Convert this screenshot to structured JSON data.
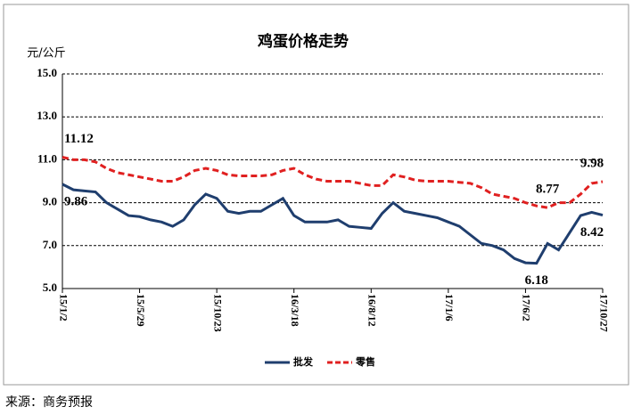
{
  "chart_data": {
    "type": "line",
    "title": "鸡蛋价格走势",
    "y_label": "元/公斤",
    "source": "来源：商务预报",
    "categories": [
      "15/1/2",
      null,
      null,
      null,
      null,
      null,
      null,
      "15/5/29",
      null,
      null,
      null,
      null,
      null,
      null,
      "15/10/23",
      null,
      null,
      null,
      null,
      null,
      null,
      "16/3/18",
      null,
      null,
      null,
      null,
      null,
      null,
      "16/8/12",
      null,
      null,
      null,
      null,
      null,
      null,
      "17/1/6",
      null,
      null,
      null,
      null,
      null,
      null,
      "17/6/2",
      null,
      null,
      null,
      null,
      null,
      null,
      "17/10/27"
    ],
    "series": [
      {
        "name": "批发",
        "color": "#1f3e6e",
        "dash": false,
        "values": [
          9.86,
          9.6,
          9.55,
          9.5,
          9.0,
          8.7,
          8.4,
          8.35,
          8.2,
          8.1,
          7.9,
          8.2,
          8.9,
          9.4,
          9.2,
          8.6,
          8.5,
          8.6,
          8.6,
          8.9,
          9.2,
          8.4,
          8.1,
          8.1,
          8.1,
          8.2,
          7.9,
          7.85,
          7.8,
          8.5,
          9.0,
          8.6,
          8.5,
          8.4,
          8.3,
          8.1,
          7.9,
          7.5,
          7.1,
          7.0,
          6.8,
          6.4,
          6.2,
          6.18,
          7.1,
          6.8,
          7.6,
          8.4,
          8.55,
          8.42
        ],
        "value_labels": [
          "9.86",
          null,
          null,
          null,
          null,
          null,
          null,
          null,
          null,
          null,
          null,
          null,
          null,
          null,
          null,
          null,
          null,
          null,
          null,
          null,
          null,
          null,
          null,
          null,
          null,
          null,
          null,
          null,
          null,
          null,
          null,
          null,
          null,
          null,
          null,
          null,
          null,
          null,
          null,
          null,
          null,
          null,
          null,
          "6.18",
          null,
          null,
          null,
          null,
          null,
          "8.42"
        ]
      },
      {
        "name": "零售",
        "color": "#e02020",
        "dash": true,
        "values": [
          11.12,
          11.0,
          11.0,
          10.9,
          10.6,
          10.4,
          10.3,
          10.2,
          10.1,
          10.0,
          10.0,
          10.2,
          10.5,
          10.6,
          10.5,
          10.3,
          10.25,
          10.25,
          10.25,
          10.3,
          10.5,
          10.6,
          10.3,
          10.1,
          10.0,
          10.0,
          10.0,
          9.9,
          9.8,
          9.8,
          10.3,
          10.2,
          10.05,
          10.0,
          10.0,
          10.0,
          9.95,
          9.9,
          9.7,
          9.4,
          9.3,
          9.2,
          9.0,
          8.85,
          8.77,
          9.0,
          9.0,
          9.4,
          9.9,
          9.98
        ],
        "value_labels": [
          "11.12",
          null,
          null,
          null,
          null,
          null,
          null,
          null,
          null,
          null,
          null,
          null,
          null,
          null,
          null,
          null,
          null,
          null,
          null,
          null,
          null,
          null,
          null,
          null,
          null,
          null,
          null,
          null,
          null,
          null,
          null,
          null,
          null,
          null,
          null,
          null,
          null,
          null,
          null,
          null,
          null,
          null,
          null,
          null,
          "8.77",
          null,
          null,
          null,
          null,
          "9.98"
        ]
      }
    ],
    "ylim": [
      5,
      15
    ],
    "yticks": [
      {
        "value": 5,
        "label": "5.0"
      },
      {
        "value": 7,
        "label": "7.0"
      },
      {
        "value": 9,
        "label": "9.0"
      },
      {
        "value": 11,
        "label": "11.0"
      },
      {
        "value": 13,
        "label": "13.0"
      },
      {
        "value": 15,
        "label": "15.0"
      }
    ],
    "grid": true,
    "legend": "bottom"
  }
}
